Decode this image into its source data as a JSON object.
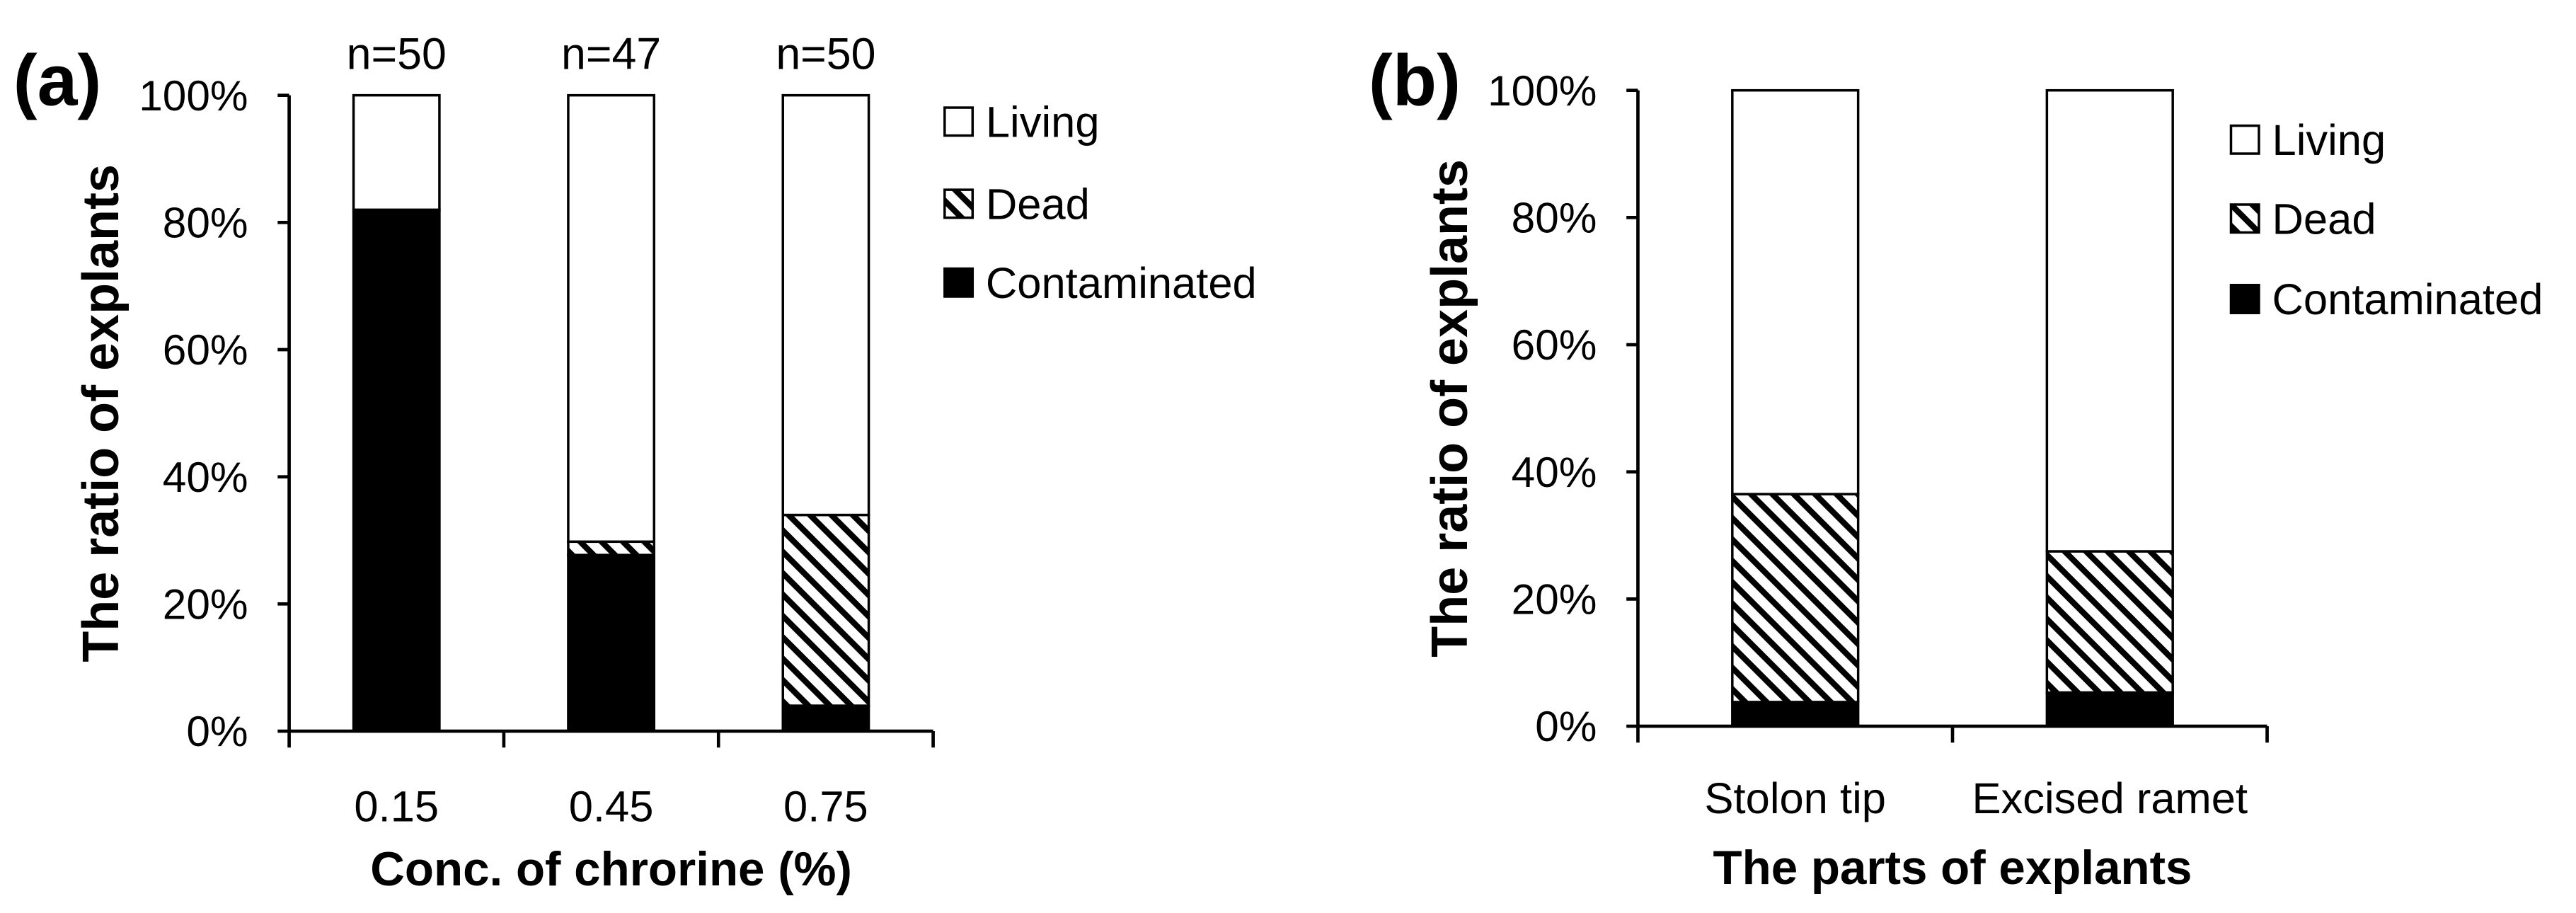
{
  "colors": {
    "contaminated": "#000000",
    "living": "#ffffff",
    "hatch": "#000000",
    "outline": "#000000",
    "background": "#ffffff"
  },
  "chart_data": [
    {
      "type": "bar",
      "stacked": true,
      "panel_label": "(a)",
      "title": "",
      "xlabel": "Conc. of chrorine (%)",
      "ylabel": "The ratio of explants",
      "ylim": [
        0,
        100
      ],
      "yticks": [
        0,
        20,
        40,
        60,
        80,
        100
      ],
      "ytick_labels": [
        "0%",
        "20%",
        "40%",
        "60%",
        "80%",
        "100%"
      ],
      "categories": [
        "0.15",
        "0.45",
        "0.75"
      ],
      "annotations": [
        "n=50",
        "n=47",
        "n=50"
      ],
      "series": [
        {
          "name": "Contaminated",
          "values": [
            82,
            27.7,
            4
          ]
        },
        {
          "name": "Dead",
          "values": [
            0,
            2.1,
            30
          ]
        },
        {
          "name": "Living",
          "values": [
            18,
            70.2,
            66
          ]
        }
      ],
      "legend_order": [
        2,
        1,
        0
      ],
      "legend_position": "right",
      "grid": false
    },
    {
      "type": "bar",
      "stacked": true,
      "panel_label": "(b)",
      "title": "",
      "xlabel": "The parts of explants",
      "ylabel": "The ratio of explants",
      "ylim": [
        0,
        100
      ],
      "yticks": [
        0,
        20,
        40,
        60,
        80,
        100
      ],
      "ytick_labels": [
        "0%",
        "20%",
        "40%",
        "60%",
        "80%",
        "100%"
      ],
      "categories": [
        "Stolon tip",
        "Excised ramet"
      ],
      "series": [
        {
          "name": "Contaminated",
          "values": [
            3.8,
            5.3
          ]
        },
        {
          "name": "Dead",
          "values": [
            32.7,
            22.2
          ]
        },
        {
          "name": "Living",
          "values": [
            63.5,
            72.5
          ]
        }
      ],
      "legend_order": [
        2,
        1,
        0
      ],
      "legend_position": "right",
      "grid": false
    }
  ]
}
